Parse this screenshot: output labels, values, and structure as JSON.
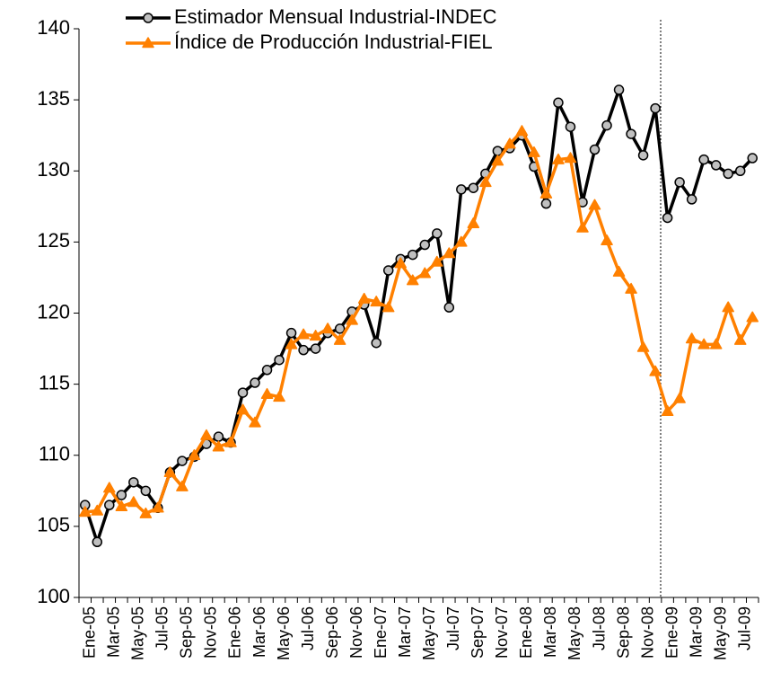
{
  "chart_data": {
    "type": "line",
    "categories": [
      "Ene-05",
      null,
      "Mar-05",
      null,
      "May-05",
      null,
      "Jul-05",
      null,
      "Sep-05",
      null,
      "Nov-05",
      null,
      "Ene-06",
      null,
      "Mar-06",
      null,
      "May-06",
      null,
      "Jul-06",
      null,
      "Sep-06",
      null,
      "Nov-06",
      null,
      "Ene-07",
      null,
      "Mar-07",
      null,
      "May-07",
      null,
      "Jul-07",
      null,
      "Sep-07",
      null,
      "Nov-07",
      null,
      "Ene-08",
      null,
      "Mar-08",
      null,
      "May-08",
      null,
      "Jul-08",
      null,
      "Sep-08",
      null,
      "Nov-08",
      null,
      "Ene-09",
      null,
      "Mar-09",
      null,
      "May-09",
      null,
      "Jul-09",
      null
    ],
    "series": [
      {
        "name": "Estimador Mensual Industrial-INDEC",
        "color": "#000000",
        "marker": "circle",
        "marker_fill": "#c0c0c0",
        "values": [
          106.5,
          103.9,
          106.5,
          107.2,
          108.1,
          107.5,
          106.3,
          108.8,
          109.6,
          109.9,
          110.8,
          111.3,
          110.9,
          114.4,
          115.1,
          116.0,
          116.7,
          118.6,
          117.4,
          117.5,
          118.6,
          118.9,
          120.1,
          120.6,
          117.9,
          123.0,
          123.8,
          124.1,
          124.8,
          125.6,
          120.4,
          128.7,
          128.8,
          129.8,
          131.4,
          131.6,
          132.5,
          130.3,
          127.7,
          134.8,
          133.1,
          127.8,
          131.5,
          133.2,
          135.7,
          132.6,
          131.1,
          134.4,
          126.7,
          129.2,
          128.0,
          130.8,
          130.4,
          129.8,
          130.0,
          130.9
        ]
      },
      {
        "name": "Índice de Producción Industrial-FIEL",
        "color": "#ff8000",
        "marker": "triangle",
        "marker_fill": "#ff8000",
        "values": [
          106.0,
          106.1,
          107.7,
          106.4,
          106.7,
          105.9,
          106.3,
          108.8,
          107.8,
          110.0,
          111.4,
          110.6,
          110.9,
          113.2,
          112.3,
          114.3,
          114.1,
          117.8,
          118.5,
          118.4,
          118.9,
          118.1,
          119.5,
          121.0,
          120.8,
          120.4,
          123.5,
          122.3,
          122.8,
          123.6,
          124.2,
          125.0,
          126.3,
          129.2,
          130.7,
          131.9,
          132.8,
          131.3,
          128.4,
          130.8,
          130.9,
          126.0,
          127.6,
          125.1,
          122.9,
          121.7,
          117.6,
          115.9,
          113.1,
          114.0,
          118.2,
          117.8,
          117.8,
          120.4,
          118.1,
          119.7
        ]
      }
    ],
    "ylim": [
      100,
      140
    ],
    "yticks": [
      100,
      105,
      110,
      115,
      120,
      125,
      130,
      135,
      140
    ],
    "grid": false
  }
}
